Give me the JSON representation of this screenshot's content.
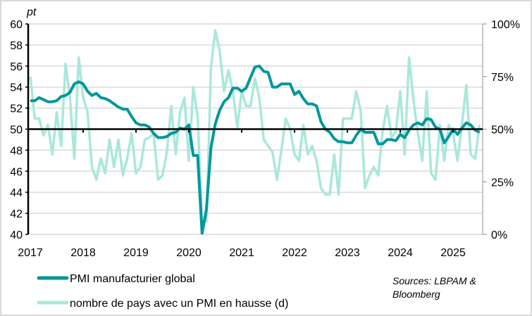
{
  "chart_data": {
    "type": "line",
    "left_axis": {
      "unit_label": "pt",
      "range": [
        40,
        60
      ],
      "ticks": [
        "60",
        "58",
        "56",
        "54",
        "52",
        "50",
        "48",
        "46",
        "44",
        "42",
        "40"
      ]
    },
    "right_axis": {
      "range": [
        0,
        100
      ],
      "ticks": [
        "100%",
        "75%",
        "50%",
        "25%",
        "0%"
      ]
    },
    "x_axis": {
      "start": "2017-01",
      "frequency": "monthly",
      "tick_labels": [
        "2017",
        "2018",
        "2019",
        "2020",
        "2021",
        "2022",
        "2023",
        "2024",
        "2025"
      ]
    },
    "grid": true,
    "reference_line": 50,
    "legend_placement": "bottom-left",
    "series": [
      {
        "name": "PMI manufacturier global",
        "axis": "left",
        "color": "#00979B",
        "values": [
          52.7,
          52.7,
          53.0,
          52.8,
          52.6,
          52.6,
          52.7,
          53.1,
          53.2,
          53.5,
          54.3,
          54.5,
          54.3,
          53.6,
          53.2,
          53.4,
          53.0,
          52.9,
          52.7,
          52.4,
          52.1,
          51.9,
          51.9,
          51.2,
          50.6,
          50.4,
          50.4,
          50.2,
          49.6,
          49.2,
          49.2,
          49.3,
          49.6,
          49.7,
          50.1,
          50.0,
          50.4,
          47.5,
          47.5,
          40.1,
          42.4,
          48.2,
          50.5,
          51.8,
          52.6,
          53.0,
          53.9,
          53.9,
          53.6,
          53.9,
          54.9,
          55.9,
          56.0,
          55.5,
          55.4,
          54.0,
          54.0,
          54.3,
          54.3,
          54.3,
          53.3,
          53.6,
          52.9,
          52.4,
          52.4,
          52.2,
          50.7,
          50.0,
          49.7,
          49.1,
          48.8,
          48.8,
          48.7,
          48.7,
          49.4,
          50.0,
          49.7,
          49.7,
          49.7,
          48.6,
          48.6,
          49.0,
          49.0,
          48.9,
          49.5,
          49.2,
          49.9,
          50.4,
          50.6,
          50.4,
          51.0,
          50.9,
          50.2,
          50.0,
          48.7,
          49.3,
          50.0,
          49.5,
          50.1,
          50.6,
          50.4,
          49.9,
          49.7
        ]
      },
      {
        "name": "nombre de pays avec un PMI en hausse (d)",
        "axis": "right",
        "color": "#A9E8DA",
        "values": [
          75,
          55,
          55,
          47,
          52,
          38,
          58,
          42,
          81,
          65,
          36,
          84,
          65,
          58,
          32,
          26,
          36,
          29,
          45,
          32,
          45,
          28,
          36,
          48,
          29,
          32,
          45,
          46,
          48,
          26,
          28,
          39,
          61,
          38,
          58,
          65,
          35,
          70,
          56,
          6,
          6,
          79,
          97,
          87,
          68,
          78,
          68,
          51,
          68,
          61,
          61,
          74,
          65,
          45,
          42,
          39,
          26,
          40,
          55,
          50,
          38,
          35,
          52,
          38,
          42,
          35,
          22,
          19,
          19,
          38,
          19,
          55,
          55,
          55,
          68,
          59,
          22,
          28,
          32,
          28,
          49,
          61,
          46,
          49,
          68,
          38,
          84,
          64,
          48,
          35,
          68,
          29,
          26,
          52,
          35,
          52,
          48,
          35,
          52,
          71,
          38,
          36,
          52
        ]
      }
    ],
    "source_note": [
      "Sources: LBPAM &",
      "Bloomberg"
    ]
  }
}
